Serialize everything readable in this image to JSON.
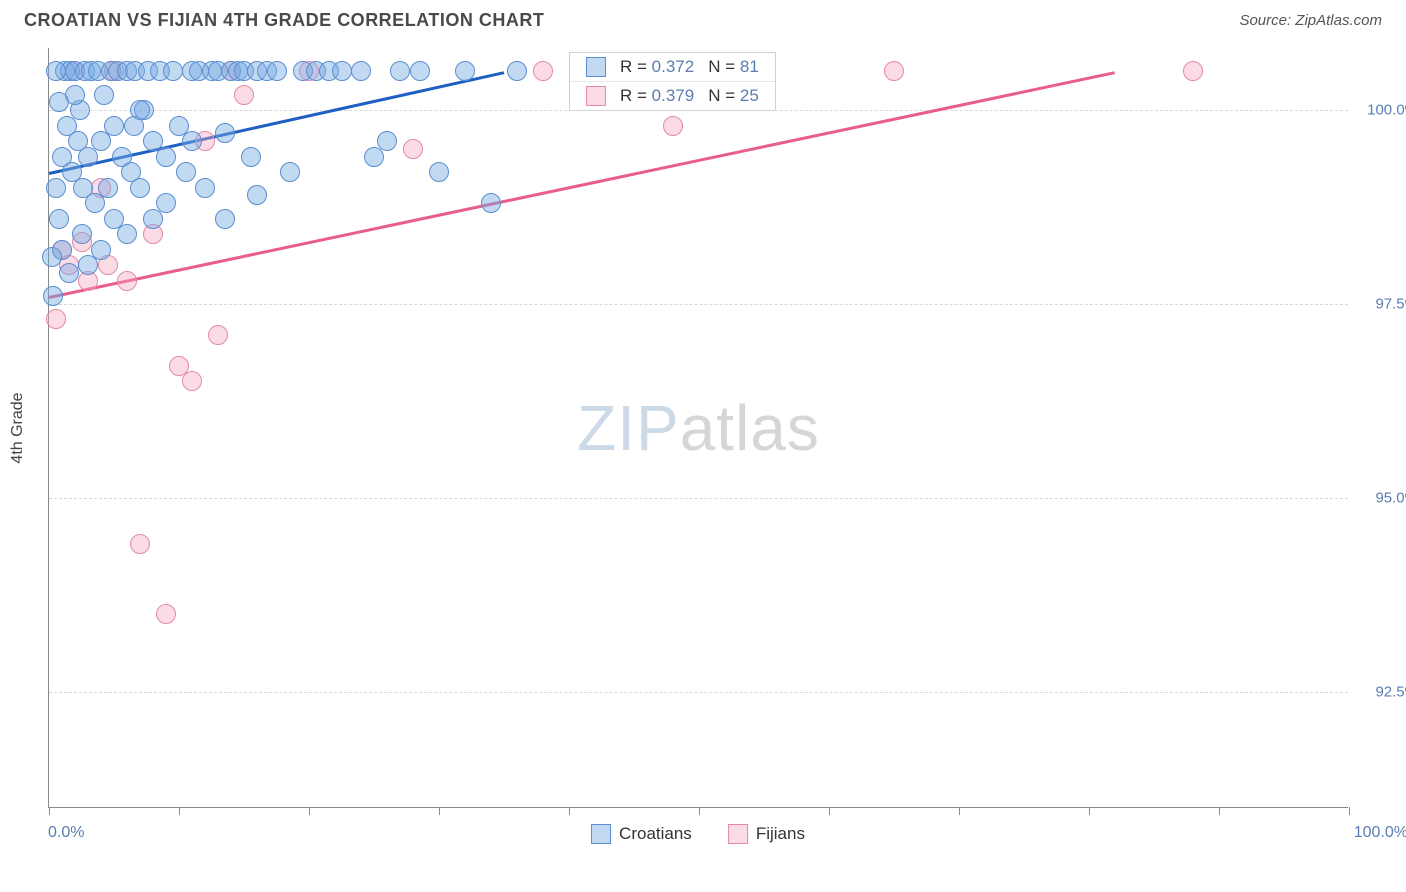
{
  "header": {
    "title": "CROATIAN VS FIJIAN 4TH GRADE CORRELATION CHART",
    "source": "Source: ZipAtlas.com"
  },
  "watermark": {
    "left": "ZIP",
    "right": "atlas"
  },
  "chart": {
    "type": "scatter",
    "ylabel": "4th Grade",
    "background_color": "#ffffff",
    "grid_color": "#d8d8d8",
    "axis_color": "#888888",
    "tick_label_color": "#5b7db1",
    "xlim": [
      0,
      100
    ],
    "ylim": [
      91.0,
      100.8
    ],
    "xtick_positions": [
      0,
      10,
      20,
      30,
      40,
      50,
      60,
      70,
      80,
      90,
      100
    ],
    "xaxis_end_labels": {
      "left": "0.0%",
      "right": "100.0%"
    },
    "yticks": [
      {
        "v": 92.5,
        "label": "92.5%"
      },
      {
        "v": 95.0,
        "label": "95.0%"
      },
      {
        "v": 97.5,
        "label": "97.5%"
      },
      {
        "v": 100.0,
        "label": "100.0%"
      }
    ],
    "marker_radius": 10,
    "series": {
      "croatians": {
        "label": "Croatians",
        "color_fill": "rgba(120,170,226,0.45)",
        "color_stroke": "#5b8ed1",
        "R": "0.372",
        "N": "81",
        "trend": {
          "x1": 0,
          "y1": 99.2,
          "x2": 35,
          "y2": 100.5,
          "color": "#1f5fc4"
        },
        "points": [
          [
            0.3,
            97.6
          ],
          [
            0.5,
            99.0
          ],
          [
            0.8,
            98.6
          ],
          [
            1.0,
            99.4
          ],
          [
            1.2,
            100.5
          ],
          [
            1.4,
            99.8
          ],
          [
            1.6,
            100.5
          ],
          [
            1.8,
            99.2
          ],
          [
            2.0,
            100.5
          ],
          [
            2.2,
            99.6
          ],
          [
            2.4,
            100.0
          ],
          [
            2.6,
            99.0
          ],
          [
            2.8,
            100.5
          ],
          [
            3.0,
            99.4
          ],
          [
            3.2,
            100.5
          ],
          [
            3.5,
            98.8
          ],
          [
            3.8,
            100.5
          ],
          [
            4.0,
            99.6
          ],
          [
            4.2,
            100.2
          ],
          [
            4.5,
            99.0
          ],
          [
            4.8,
            100.5
          ],
          [
            5.0,
            99.8
          ],
          [
            5.3,
            100.5
          ],
          [
            5.6,
            99.4
          ],
          [
            6.0,
            100.5
          ],
          [
            6.3,
            99.2
          ],
          [
            6.6,
            100.5
          ],
          [
            7.0,
            99.0
          ],
          [
            7.3,
            100.0
          ],
          [
            7.6,
            100.5
          ],
          [
            8.0,
            99.6
          ],
          [
            8.5,
            100.5
          ],
          [
            9.0,
            98.8
          ],
          [
            9.5,
            100.5
          ],
          [
            10.0,
            99.8
          ],
          [
            10.5,
            99.2
          ],
          [
            11.0,
            100.5
          ],
          [
            11.5,
            100.5
          ],
          [
            12.0,
            99.0
          ],
          [
            12.5,
            100.5
          ],
          [
            13.0,
            100.5
          ],
          [
            13.5,
            98.6
          ],
          [
            14.0,
            100.5
          ],
          [
            14.5,
            100.5
          ],
          [
            15.0,
            100.5
          ],
          [
            15.5,
            99.4
          ],
          [
            16.0,
            100.5
          ],
          [
            16.8,
            100.5
          ],
          [
            17.5,
            100.5
          ],
          [
            18.5,
            99.2
          ],
          [
            19.5,
            100.5
          ],
          [
            20.5,
            100.5
          ],
          [
            21.5,
            100.5
          ],
          [
            22.5,
            100.5
          ],
          [
            24.0,
            100.5
          ],
          [
            25.0,
            99.4
          ],
          [
            26.0,
            99.6
          ],
          [
            27.0,
            100.5
          ],
          [
            28.5,
            100.5
          ],
          [
            30.0,
            99.2
          ],
          [
            32.0,
            100.5
          ],
          [
            34.0,
            98.8
          ],
          [
            36.0,
            100.5
          ],
          [
            1.0,
            98.2
          ],
          [
            2.5,
            98.4
          ],
          [
            4.0,
            98.2
          ],
          [
            6.0,
            98.4
          ],
          [
            0.5,
            100.5
          ],
          [
            3.0,
            98.0
          ],
          [
            8.0,
            98.6
          ],
          [
            11.0,
            99.6
          ],
          [
            1.5,
            97.9
          ],
          [
            5.0,
            98.6
          ],
          [
            7.0,
            100.0
          ],
          [
            9.0,
            99.4
          ],
          [
            16.0,
            98.9
          ],
          [
            0.2,
            98.1
          ],
          [
            0.8,
            100.1
          ],
          [
            2.0,
            100.2
          ],
          [
            6.5,
            99.8
          ],
          [
            13.5,
            99.7
          ]
        ]
      },
      "fijians": {
        "label": "Fijians",
        "color_fill": "rgba(244,166,188,0.40)",
        "color_stroke": "#e48aa6",
        "R": "0.379",
        "N": "25",
        "trend": {
          "x1": 0,
          "y1": 97.6,
          "x2": 82,
          "y2": 100.5,
          "color": "#e85d8c"
        },
        "points": [
          [
            0.5,
            97.3
          ],
          [
            1.0,
            98.2
          ],
          [
            1.5,
            98.0
          ],
          [
            2.0,
            100.5
          ],
          [
            2.5,
            98.3
          ],
          [
            3.0,
            97.8
          ],
          [
            4.0,
            99.0
          ],
          [
            5.0,
            100.5
          ],
          [
            6.0,
            97.8
          ],
          [
            7.0,
            94.4
          ],
          [
            8.0,
            98.4
          ],
          [
            9.0,
            93.5
          ],
          [
            10.0,
            96.7
          ],
          [
            11.0,
            96.5
          ],
          [
            12.0,
            99.6
          ],
          [
            13.0,
            97.1
          ],
          [
            14.0,
            100.5
          ],
          [
            15.0,
            100.2
          ],
          [
            20.0,
            100.5
          ],
          [
            28.0,
            99.5
          ],
          [
            38.0,
            100.5
          ],
          [
            48.0,
            99.8
          ],
          [
            65.0,
            100.5
          ],
          [
            88.0,
            100.5
          ],
          [
            4.5,
            98.0
          ]
        ]
      }
    }
  },
  "legend": {
    "items": [
      {
        "key": "croatians",
        "label": "Croatians"
      },
      {
        "key": "fijians",
        "label": "Fijians"
      }
    ]
  }
}
